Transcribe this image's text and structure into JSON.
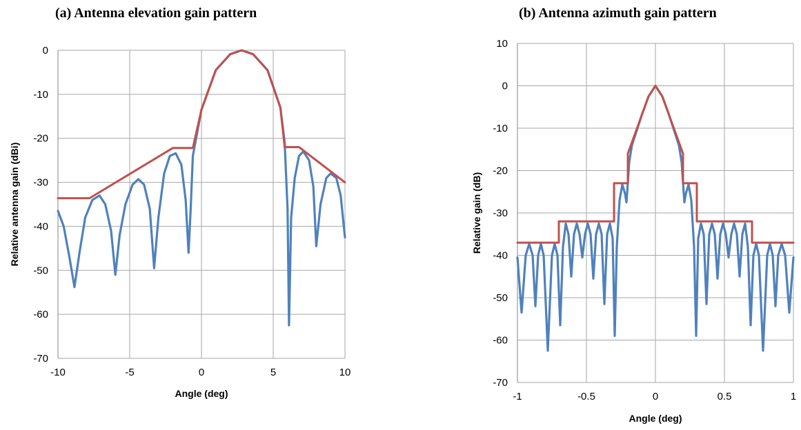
{
  "chart_data": [
    {
      "type": "line",
      "title": "(a) Antenna elevation gain pattern",
      "xlabel": "Angle (deg)",
      "ylabel": "Relative antenna gain (dBi)",
      "xlim": [
        -10,
        10
      ],
      "ylim": [
        -70,
        0
      ],
      "xticks": [
        -10,
        -5,
        0,
        5,
        10
      ],
      "yticks": [
        0,
        -10,
        -20,
        -30,
        -40,
        -50,
        -60,
        -70
      ],
      "grid": true,
      "colors": {
        "pattern": "#4F81BD",
        "envelope": "#C0504D"
      },
      "series": [
        {
          "kind": "envelope",
          "points": [
            [
              -10,
              -33.6
            ],
            [
              -7.8,
              -33.6
            ],
            [
              -2,
              -22.2
            ],
            [
              -0.6,
              -22.2
            ],
            [
              0,
              -13.5
            ],
            [
              1,
              -4.5
            ],
            [
              2,
              -0.9
            ],
            [
              2.8,
              0
            ],
            [
              3.6,
              -0.9
            ],
            [
              4.6,
              -4.5
            ],
            [
              5.5,
              -13
            ],
            [
              5.8,
              -22
            ],
            [
              6.8,
              -22
            ],
            [
              10,
              -30
            ]
          ]
        },
        {
          "kind": "pattern",
          "points": [
            [
              -10,
              -36.5
            ],
            [
              -9.6,
              -40
            ],
            [
              -9.2,
              -47
            ],
            [
              -8.85,
              -53.8
            ],
            [
              -8.5,
              -46
            ],
            [
              -8.1,
              -38
            ],
            [
              -7.6,
              -34
            ],
            [
              -7.1,
              -33
            ],
            [
              -6.7,
              -35
            ],
            [
              -6.3,
              -41
            ],
            [
              -6.0,
              -51
            ],
            [
              -5.7,
              -42
            ],
            [
              -5.3,
              -35
            ],
            [
              -4.8,
              -30.5
            ],
            [
              -4.4,
              -29.3
            ],
            [
              -4.0,
              -30.5
            ],
            [
              -3.6,
              -36
            ],
            [
              -3.3,
              -49.5
            ],
            [
              -3.0,
              -38
            ],
            [
              -2.6,
              -28
            ],
            [
              -2.2,
              -24
            ],
            [
              -1.8,
              -23.4
            ],
            [
              -1.4,
              -26
            ],
            [
              -1.1,
              -34
            ],
            [
              -0.9,
              -46
            ],
            [
              -0.75,
              -36
            ],
            [
              -0.6,
              -24
            ],
            [
              0,
              -13.5
            ],
            [
              1,
              -4.5
            ],
            [
              2,
              -0.9
            ],
            [
              2.8,
              0
            ],
            [
              3.6,
              -0.9
            ],
            [
              4.6,
              -4.5
            ],
            [
              5.5,
              -13
            ],
            [
              5.8,
              -21
            ],
            [
              6.0,
              -36
            ],
            [
              6.1,
              -62.5
            ],
            [
              6.25,
              -38
            ],
            [
              6.5,
              -29
            ],
            [
              6.8,
              -24
            ],
            [
              7.1,
              -23
            ],
            [
              7.5,
              -25
            ],
            [
              7.8,
              -31
            ],
            [
              8.0,
              -44.5
            ],
            [
              8.3,
              -35
            ],
            [
              8.7,
              -29
            ],
            [
              9.0,
              -28
            ],
            [
              9.4,
              -29
            ],
            [
              9.7,
              -33
            ],
            [
              10,
              -42.5
            ]
          ]
        }
      ]
    },
    {
      "type": "line",
      "title": "(b) Antenna azimuth gain pattern",
      "xlabel": "Angle (deg)",
      "ylabel": "Relative gain (dB)",
      "xlim": [
        -1,
        1
      ],
      "ylim": [
        -70,
        10
      ],
      "xticks": [
        -1,
        -0.5,
        0,
        0.5,
        1
      ],
      "yticks": [
        10,
        0,
        -10,
        -20,
        -30,
        -40,
        -50,
        -60,
        -70
      ],
      "grid": true,
      "colors": {
        "pattern": "#4F81BD",
        "envelope": "#C0504D"
      },
      "series": [
        {
          "kind": "envelope",
          "points": [
            [
              -1,
              -37
            ],
            [
              -0.7,
              -37
            ],
            [
              -0.7,
              -32
            ],
            [
              -0.3,
              -32
            ],
            [
              -0.3,
              -23
            ],
            [
              -0.2,
              -23
            ],
            [
              -0.2,
              -16
            ],
            [
              -0.1,
              -7
            ],
            [
              -0.05,
              -2.5
            ],
            [
              0,
              0
            ],
            [
              0.05,
              -2.5
            ],
            [
              0.1,
              -7
            ],
            [
              0.2,
              -16
            ],
            [
              0.2,
              -23
            ],
            [
              0.3,
              -23
            ],
            [
              0.3,
              -32
            ],
            [
              0.7,
              -32
            ],
            [
              0.7,
              -37
            ],
            [
              1,
              -37
            ]
          ]
        },
        {
          "kind": "pattern",
          "points": [
            [
              -1,
              -40.5
            ],
            [
              -0.97,
              -53.5
            ],
            [
              -0.94,
              -40
            ],
            [
              -0.915,
              -37.3
            ],
            [
              -0.89,
              -40
            ],
            [
              -0.87,
              -52
            ],
            [
              -0.85,
              -40
            ],
            [
              -0.83,
              -37.3
            ],
            [
              -0.81,
              -40
            ],
            [
              -0.78,
              -62.5
            ],
            [
              -0.75,
              -40
            ],
            [
              -0.73,
              -37.3
            ],
            [
              -0.71,
              -40
            ],
            [
              -0.69,
              -56.5
            ],
            [
              -0.67,
              -38
            ],
            [
              -0.65,
              -32.5
            ],
            [
              -0.63,
              -35
            ],
            [
              -0.61,
              -45
            ],
            [
              -0.59,
              -35
            ],
            [
              -0.57,
              -32.5
            ],
            [
              -0.55,
              -35
            ],
            [
              -0.53,
              -40.5
            ],
            [
              -0.51,
              -35
            ],
            [
              -0.49,
              -32.5
            ],
            [
              -0.47,
              -35
            ],
            [
              -0.45,
              -45.5
            ],
            [
              -0.43,
              -35
            ],
            [
              -0.41,
              -32.5
            ],
            [
              -0.39,
              -35
            ],
            [
              -0.37,
              -51.5
            ],
            [
              -0.35,
              -35
            ],
            [
              -0.33,
              -32.5
            ],
            [
              -0.31,
              -36
            ],
            [
              -0.295,
              -59
            ],
            [
              -0.28,
              -38
            ],
            [
              -0.26,
              -27
            ],
            [
              -0.24,
              -23.3
            ],
            [
              -0.22,
              -25.5
            ],
            [
              -0.21,
              -27.5
            ],
            [
              -0.2,
              -23
            ],
            [
              -0.19,
              -18
            ],
            [
              -0.17,
              -14
            ],
            [
              -0.1,
              -7
            ],
            [
              -0.05,
              -2.5
            ],
            [
              0,
              0
            ],
            [
              0.05,
              -2.5
            ],
            [
              0.1,
              -7
            ],
            [
              0.17,
              -14
            ],
            [
              0.19,
              -18
            ],
            [
              0.2,
              -23
            ],
            [
              0.21,
              -27.5
            ],
            [
              0.22,
              -25.5
            ],
            [
              0.24,
              -23.3
            ],
            [
              0.26,
              -27
            ],
            [
              0.28,
              -38
            ],
            [
              0.295,
              -59
            ],
            [
              0.31,
              -36
            ],
            [
              0.33,
              -32.5
            ],
            [
              0.35,
              -35
            ],
            [
              0.37,
              -51.5
            ],
            [
              0.39,
              -35
            ],
            [
              0.41,
              -32.5
            ],
            [
              0.43,
              -35
            ],
            [
              0.45,
              -45.5
            ],
            [
              0.47,
              -35
            ],
            [
              0.49,
              -32.5
            ],
            [
              0.51,
              -35
            ],
            [
              0.53,
              -40.5
            ],
            [
              0.55,
              -35
            ],
            [
              0.57,
              -32.5
            ],
            [
              0.59,
              -35
            ],
            [
              0.61,
              -45
            ],
            [
              0.63,
              -35
            ],
            [
              0.65,
              -32.5
            ],
            [
              0.67,
              -38
            ],
            [
              0.69,
              -56.5
            ],
            [
              0.71,
              -40
            ],
            [
              0.73,
              -37.3
            ],
            [
              0.75,
              -40
            ],
            [
              0.78,
              -62.5
            ],
            [
              0.81,
              -40
            ],
            [
              0.83,
              -37.3
            ],
            [
              0.85,
              -40
            ],
            [
              0.87,
              -52
            ],
            [
              0.89,
              -40
            ],
            [
              0.915,
              -37.3
            ],
            [
              0.94,
              -40
            ],
            [
              0.97,
              -53.5
            ],
            [
              1,
              -40.5
            ]
          ]
        }
      ]
    }
  ]
}
